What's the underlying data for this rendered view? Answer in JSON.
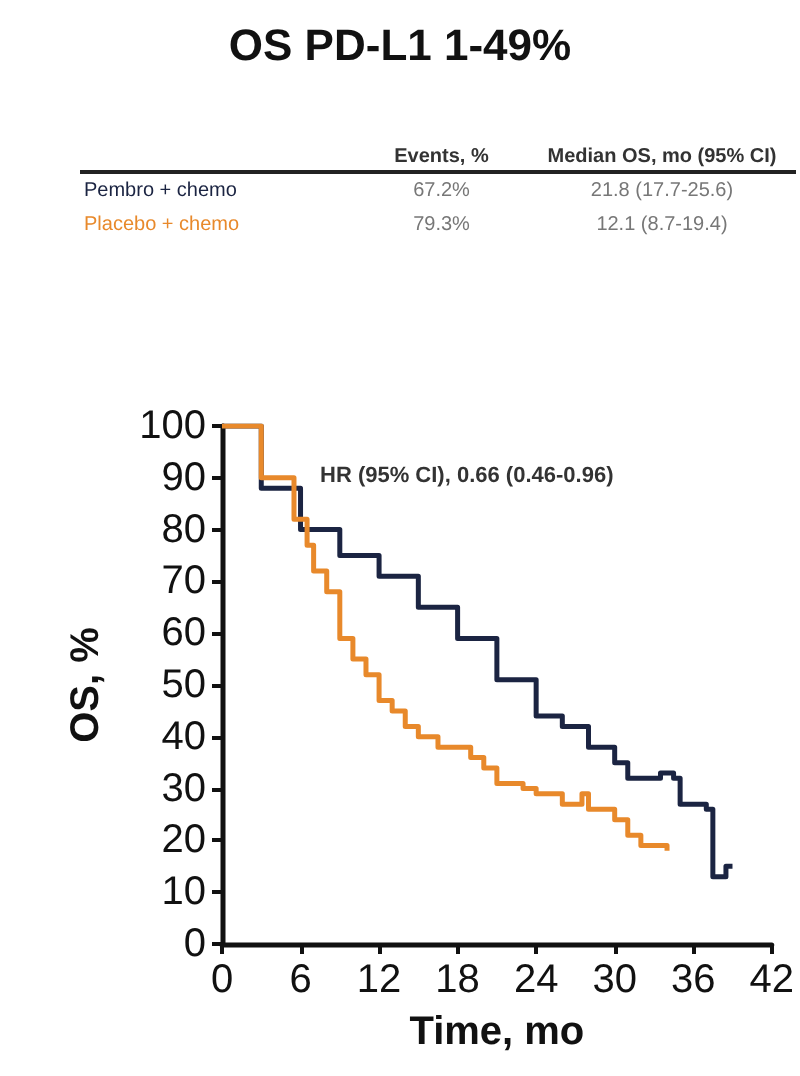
{
  "chart_data": {
    "type": "step",
    "title": "OS PD-L1 1-49%",
    "xlabel": "Time, mo",
    "ylabel": "OS, %",
    "annotations": [
      "Events, %",
      "Median OS, mo (95% CI)",
      "67.2%",
      "21.8 (17.7-25.6)",
      "79.3%",
      "12.1 (8.7-19.4)",
      "HR (95% CI), 0.66 (0.46-0.96)"
    ],
    "series": [
      {
        "name": "Pembro + chemo",
        "color": "#1b2442",
        "x": [
          0,
          3,
          6,
          9,
          12,
          15,
          18,
          21,
          24,
          26,
          28,
          30,
          31,
          33.5,
          34.5,
          35,
          37,
          37.5,
          38.5,
          39
        ],
        "values": [
          100,
          88,
          80,
          75,
          71,
          65,
          59,
          51,
          44,
          42,
          38,
          35,
          32,
          33,
          32,
          27,
          26,
          13,
          15,
          15
        ]
      },
      {
        "name": "Placebo + chemo",
        "color": "#e8892b",
        "x": [
          0,
          3,
          5.5,
          6.5,
          7,
          8,
          9,
          10,
          11,
          12,
          13,
          14,
          15,
          16.5,
          19,
          20,
          21,
          23,
          24,
          26,
          27.5,
          28,
          30,
          31,
          32,
          34
        ],
        "values": [
          100,
          90,
          82,
          77,
          72,
          68,
          59,
          55,
          52,
          47,
          45,
          42,
          40,
          38,
          36,
          34,
          31,
          30,
          29,
          27,
          29,
          26,
          24,
          21,
          19,
          18
        ]
      }
    ],
    "xlim": [
      0,
      42
    ],
    "xticks": [
      0,
      6,
      12,
      18,
      24,
      30,
      36,
      42
    ],
    "ylim": [
      0,
      100
    ],
    "yticks": [
      0,
      10,
      20,
      30,
      40,
      50,
      60,
      70,
      80,
      90,
      100
    ],
    "grid": false,
    "legend": "top",
    "marker": "none",
    "line_style": "solid"
  }
}
